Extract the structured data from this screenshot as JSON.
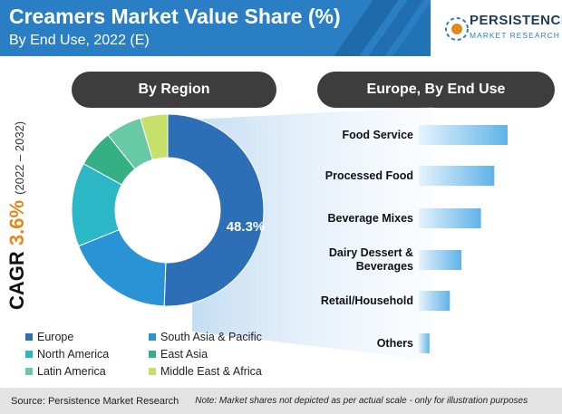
{
  "header": {
    "title": "Creamers Market Value Share (%)",
    "subtitle": "By End Use, 2022 (E)"
  },
  "logo": {
    "name": "PERSISTENCE",
    "tagline": "MARKET RESEARCH"
  },
  "cagr": {
    "label": "CAGR",
    "value": "3.6%",
    "period": "(2022 – 2032)"
  },
  "colors": {
    "title_band": "#2a7fc4",
    "accent": "#e08a1e",
    "pill": "#3d3d3d"
  },
  "chart_data": [
    {
      "type": "pie",
      "title": "By Region",
      "donut": true,
      "labels": [
        "Europe",
        "South Asia & Pacific",
        "North America",
        "East Asia",
        "Latin America",
        "Middle East & Africa"
      ],
      "values": [
        48.3,
        17.5,
        13.5,
        6.0,
        5.8,
        4.4
      ],
      "colors": [
        "#2c6fb7",
        "#2a93d5",
        "#2cb7c7",
        "#35b084",
        "#67c9a6",
        "#c7e06a"
      ],
      "data_labels": [
        "48.3%",
        "",
        "",
        "",
        "",
        ""
      ],
      "legend_position": "bottom"
    },
    {
      "type": "bar",
      "orientation": "horizontal",
      "title": "Europe, By End Use",
      "categories": [
        "Food Service",
        "Processed Food",
        "Beverage Mixes",
        "Dairy Dessert & Beverages",
        "Retail/Household",
        "Others"
      ],
      "category_display": [
        "Food Service",
        "Processed Food",
        "Beverage Mixes",
        "Dairy Dessert &\nBeverages",
        "Retail/Household",
        "Others"
      ],
      "values": [
        100,
        85,
        70,
        48,
        35,
        12
      ],
      "note": "relative illustration only"
    }
  ],
  "footer": {
    "source": "Source: Persistence Market Research",
    "note": "Note: Market shares not depicted as per actual scale - only for illustration purposes"
  }
}
